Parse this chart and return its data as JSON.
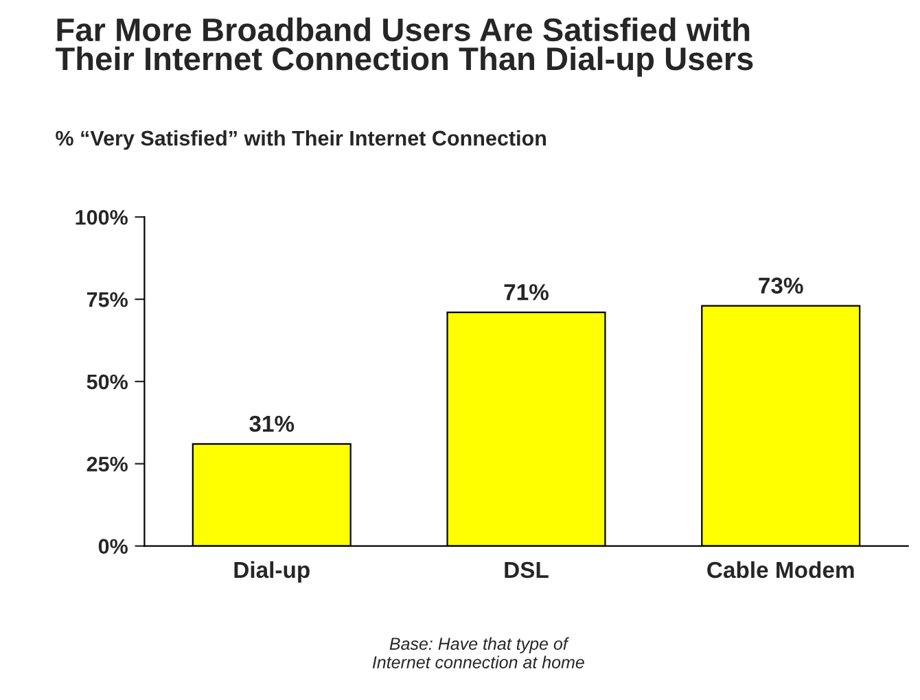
{
  "chart_data": {
    "type": "bar",
    "title": "Far More Broadband Users Are Satisfied with\nTheir Internet Connection Than Dial-up Users",
    "subtitle": "% “Very Satisfied” with Their Internet Connection",
    "categories": [
      "Dial-up",
      "DSL",
      "Cable Modem"
    ],
    "values": [
      31,
      71,
      73
    ],
    "value_labels": [
      "31%",
      "71%",
      "73%"
    ],
    "color": "#ffff00",
    "ylim": [
      0,
      100
    ],
    "yticks": [
      {
        "value": 0,
        "label": "0%"
      },
      {
        "value": 25,
        "label": "25%"
      },
      {
        "value": 50,
        "label": "50%"
      },
      {
        "value": 75,
        "label": "75%"
      },
      {
        "value": 100,
        "label": "100%"
      }
    ],
    "grid": false,
    "annotations": [
      "Base: Have that type of\nInternet connection at home"
    ]
  }
}
